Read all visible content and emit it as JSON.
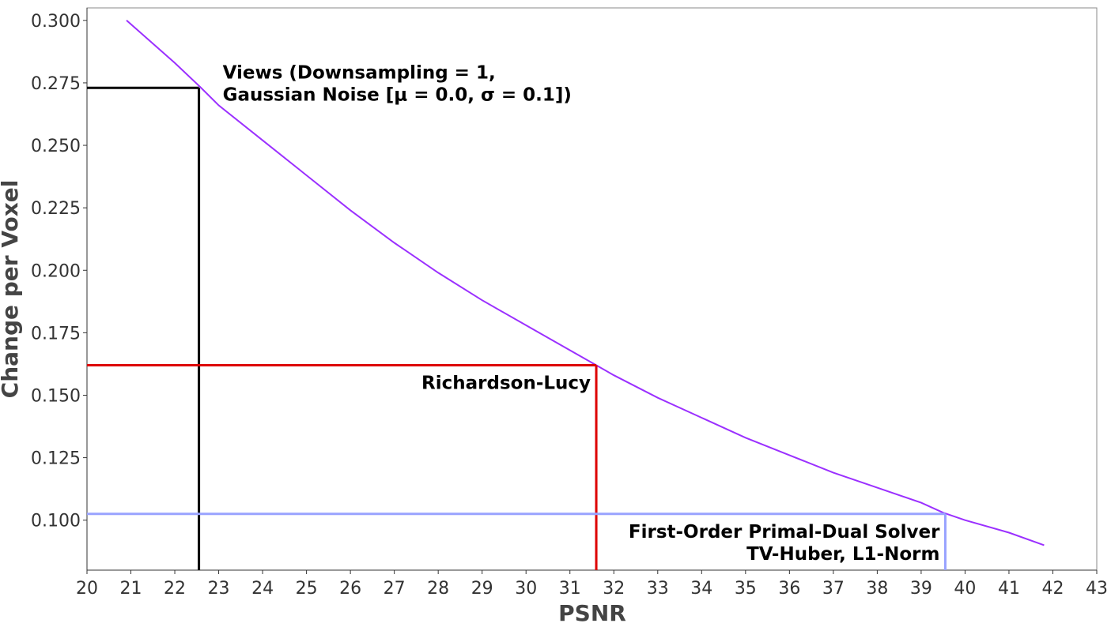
{
  "chart_data": {
    "type": "line",
    "title": "",
    "xlabel": "PSNR",
    "ylabel": "Change per Voxel",
    "xlim": [
      20,
      43
    ],
    "ylim": [
      0.08,
      0.305
    ],
    "xticks": [
      20,
      21,
      22,
      23,
      24,
      25,
      26,
      27,
      28,
      29,
      30,
      31,
      32,
      33,
      34,
      35,
      36,
      37,
      38,
      39,
      40,
      41,
      42,
      43
    ],
    "yticks": [
      0.1,
      0.125,
      0.15,
      0.175,
      0.2,
      0.225,
      0.25,
      0.275,
      0.3
    ],
    "grid": false,
    "legend": "none",
    "series": [
      {
        "color": "#9b30ff",
        "x": [
          20.9,
          22.0,
          22.6,
          23.0,
          24.0,
          25.0,
          26.0,
          27.0,
          28.0,
          29.0,
          30.0,
          31.0,
          31.6,
          32.0,
          33.0,
          34.0,
          35.0,
          36.0,
          37.0,
          38.0,
          39.0,
          39.5,
          40.0,
          41.0,
          41.8
        ],
        "y": [
          0.3,
          0.283,
          0.273,
          0.266,
          0.252,
          0.238,
          0.224,
          0.211,
          0.199,
          0.188,
          0.178,
          0.168,
          0.162,
          0.158,
          0.149,
          0.141,
          0.133,
          0.126,
          0.119,
          0.113,
          0.107,
          0.103,
          0.1,
          0.095,
          0.09
        ]
      }
    ],
    "markers": [
      {
        "x": 22.55,
        "y": 0.273,
        "color": "#000000",
        "label_lines": [
          "Views (Downsampling = 1,",
          "Gaussian Noise [μ = 0.0, σ = 0.1])"
        ],
        "label_anchor": "start"
      },
      {
        "x": 31.6,
        "y": 0.162,
        "color": "#dd0000",
        "label_lines": [
          "Richardson-Lucy"
        ],
        "label_anchor": "end"
      },
      {
        "x": 39.55,
        "y": 0.1025,
        "color": "#99a3ff",
        "label_lines": [
          "First-Order Primal-Dual Solver",
          "TV-Huber, L1-Norm"
        ],
        "label_anchor": "end"
      }
    ]
  }
}
